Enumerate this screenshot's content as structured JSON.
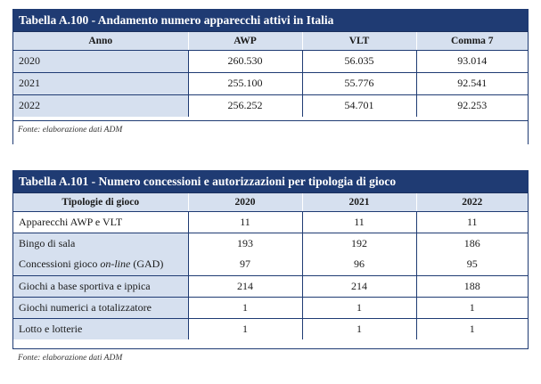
{
  "table1": {
    "title": "Tabella A.100 - Andamento numero apparecchi attivi in Italia",
    "headers": [
      "Anno",
      "AWP",
      "VLT",
      "Comma 7"
    ],
    "rows": [
      [
        "2020",
        "260.530",
        "56.035",
        "93.014"
      ],
      [
        "2021",
        "255.100",
        "55.776",
        "92.541"
      ],
      [
        "2022",
        "256.252",
        "54.701",
        "92.253"
      ]
    ],
    "source": "Fonte: elaborazione dati ADM"
  },
  "table2": {
    "title": "Tabella A.101 - Numero concessioni e autorizzazioni per tipologia di gioco",
    "headers": [
      "Tipologie di gioco",
      "2020",
      "2021",
      "2022"
    ],
    "rows": [
      {
        "label": "Apparecchi AWP e VLT",
        "values": [
          "11",
          "11",
          "11"
        ]
      },
      {
        "label": "Bingo di sala",
        "values": [
          "193",
          "192",
          "186"
        ]
      },
      {
        "label_pre": "Concessioni gioco ",
        "label_em": "on-line",
        "label_post": " (GAD)",
        "values": [
          "97",
          "96",
          "95"
        ]
      },
      {
        "label": "Giochi a base sportiva e ippica",
        "values": [
          "214",
          "214",
          "188"
        ]
      },
      {
        "label": "Giochi numerici a totalizzatore",
        "values": [
          "1",
          "1",
          "1"
        ]
      },
      {
        "label": "Lotto e lotterie",
        "values": [
          "1",
          "1",
          "1"
        ]
      }
    ],
    "source": "Fonte: elaborazione dati ADM"
  }
}
